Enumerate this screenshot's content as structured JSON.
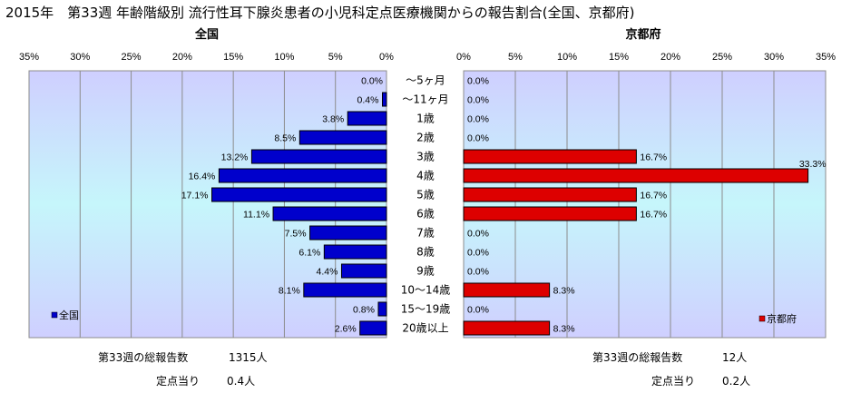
{
  "title": "2015年　第33週 年齢階級別 流行性耳下腺炎患者の小児科定点医療機関からの報告割合(全国、京都府)",
  "chart_data": {
    "type": "bar",
    "categories": [
      "～5ヶ月",
      "～11ヶ月",
      "1歳",
      "2歳",
      "3歳",
      "4歳",
      "5歳",
      "6歳",
      "7歳",
      "8歳",
      "9歳",
      "10～14歳",
      "15～19歳",
      "20歳以上"
    ],
    "series": [
      {
        "name": "全国",
        "title": "全国",
        "color": "#0000cc",
        "values": [
          0.0,
          0.4,
          3.8,
          8.5,
          13.2,
          16.4,
          17.1,
          11.1,
          7.5,
          6.1,
          4.4,
          8.1,
          0.8,
          2.6
        ],
        "labels": [
          "0.0%",
          "0.4%",
          "3.8%",
          "8.5%",
          "13.2%",
          "16.4%",
          "17.1%",
          "11.1%",
          "7.5%",
          "6.1%",
          "4.4%",
          "8.1%",
          "0.8%",
          "2.6%"
        ],
        "legend": "全国"
      },
      {
        "name": "京都府",
        "title": "京都府",
        "color": "#dd0000",
        "values": [
          0.0,
          0.0,
          0.0,
          0.0,
          16.7,
          33.3,
          16.7,
          16.7,
          0.0,
          0.0,
          0.0,
          8.3,
          0.0,
          8.3
        ],
        "labels": [
          "0.0%",
          "0.0%",
          "0.0%",
          "0.0%",
          "16.7%",
          "33.3%",
          "16.7%",
          "16.7%",
          "0.0%",
          "0.0%",
          "0.0%",
          "8.3%",
          "0.0%",
          "8.3%"
        ],
        "legend": "京都府"
      }
    ],
    "xlim": [
      0,
      35
    ],
    "xticks": [
      "35%",
      "30%",
      "25%",
      "20%",
      "15%",
      "10%",
      "5%",
      "0%"
    ],
    "xticks_right": [
      "0%",
      "5%",
      "10%",
      "15%",
      "20%",
      "25%",
      "30%",
      "35%"
    ]
  },
  "footer": {
    "left": {
      "total_label": "第33週の総報告数",
      "total_value": "1315人",
      "perpoint_label": "定点当り",
      "perpoint_value": "0.4人"
    },
    "right": {
      "total_label": "第33週の総報告数",
      "total_value": "12人",
      "perpoint_label": "定点当り",
      "perpoint_value": "0.2人"
    }
  }
}
